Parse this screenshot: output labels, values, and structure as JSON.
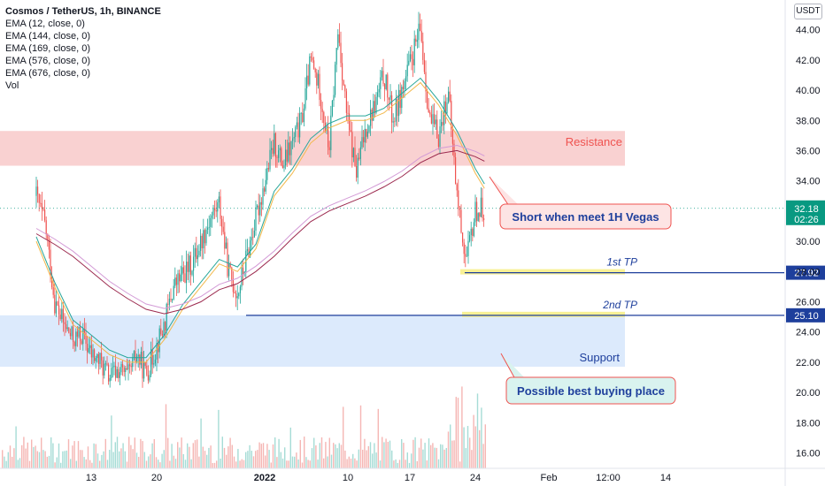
{
  "legend": {
    "title": "Cosmos / TetherUS, 1h, BINANCE",
    "indicators": [
      "EMA (12, close, 0)",
      "EMA (144, close, 0)",
      "EMA (169, close, 0)",
      "EMA (576, close, 0)",
      "EMA (676, close, 0)",
      "Vol"
    ]
  },
  "currency_button": "USDT",
  "chart_data": {
    "type": "candlestick",
    "symbol": "Cosmos / TetherUS",
    "interval": "1h",
    "exchange": "BINANCE",
    "y_axis": {
      "ticks": [
        "16.00",
        "18.00",
        "20.00",
        "22.00",
        "24.00",
        "26.00",
        "28.00",
        "30.00",
        "32.00",
        "34.00",
        "36.00",
        "38.00",
        "40.00",
        "42.00",
        "44.00"
      ],
      "range": [
        15.5,
        45.5
      ],
      "side": "right"
    },
    "x_axis": {
      "ticks": [
        "13",
        "20",
        "2022",
        "10",
        "17",
        "24",
        "Feb",
        "12:00",
        "14"
      ]
    },
    "price_path": [
      {
        "x": "Dec 7",
        "y": 33.0
      },
      {
        "x": "Dec 8",
        "y": 31.0
      },
      {
        "x": "Dec 9",
        "y": 26.0
      },
      {
        "x": "Dec 10",
        "y": 24.5
      },
      {
        "x": "Dec 11",
        "y": 23.5
      },
      {
        "x": "Dec 12",
        "y": 23.8
      },
      {
        "x": "Dec 13",
        "y": 22.5
      },
      {
        "x": "Dec 14",
        "y": 22.0
      },
      {
        "x": "Dec 15",
        "y": 21.0
      },
      {
        "x": "Dec 16",
        "y": 21.5
      },
      {
        "x": "Dec 17",
        "y": 21.0
      },
      {
        "x": "Dec 18",
        "y": 22.5
      },
      {
        "x": "Dec 19",
        "y": 21.2
      },
      {
        "x": "Dec 21",
        "y": 24.5
      },
      {
        "x": "Dec 22",
        "y": 27.0
      },
      {
        "x": "Dec 24",
        "y": 28.5
      },
      {
        "x": "Dec 26",
        "y": 31.5
      },
      {
        "x": "Dec 27",
        "y": 32.5
      },
      {
        "x": "Dec 28",
        "y": 28.0
      },
      {
        "x": "Dec 29",
        "y": 26.5
      },
      {
        "x": "Dec 30",
        "y": 29.0
      },
      {
        "x": "Jan 1",
        "y": 34.0
      },
      {
        "x": "Jan 2",
        "y": 36.5
      },
      {
        "x": "Jan 3",
        "y": 35.0
      },
      {
        "x": "Jan 5",
        "y": 38.0
      },
      {
        "x": "Jan 6",
        "y": 42.0
      },
      {
        "x": "Jan 7",
        "y": 40.0
      },
      {
        "x": "Jan 8",
        "y": 36.0
      },
      {
        "x": "Jan 9",
        "y": 44.0
      },
      {
        "x": "Jan 10",
        "y": 38.0
      },
      {
        "x": "Jan 11",
        "y": 34.5
      },
      {
        "x": "Jan 12",
        "y": 37.5
      },
      {
        "x": "Jan 13",
        "y": 39.0
      },
      {
        "x": "Jan 14",
        "y": 41.0
      },
      {
        "x": "Jan 15",
        "y": 38.0
      },
      {
        "x": "Jan 16",
        "y": 40.0
      },
      {
        "x": "Jan 17",
        "y": 42.0
      },
      {
        "x": "Jan 18",
        "y": 44.0
      },
      {
        "x": "Jan 19",
        "y": 38.0
      },
      {
        "x": "Jan 20",
        "y": 37.0
      },
      {
        "x": "Jan 21",
        "y": 40.0
      },
      {
        "x": "Jan 22",
        "y": 33.0
      },
      {
        "x": "Jan 23",
        "y": 28.5
      },
      {
        "x": "Jan 24",
        "y": 32.0
      },
      {
        "x": "Jan 25",
        "y": 32.2
      }
    ],
    "ema_fast": [
      {
        "x": "Dec 7",
        "y": 30.0
      },
      {
        "x": "Dec 9",
        "y": 27.0
      },
      {
        "x": "Dec 11",
        "y": 24.5
      },
      {
        "x": "Dec 13",
        "y": 23.5
      },
      {
        "x": "Dec 15",
        "y": 22.5
      },
      {
        "x": "Dec 17",
        "y": 22.0
      },
      {
        "x": "Dec 19",
        "y": 22.0
      },
      {
        "x": "Dec 21",
        "y": 23.5
      },
      {
        "x": "Dec 23",
        "y": 25.5
      },
      {
        "x": "Dec 25",
        "y": 27.0
      },
      {
        "x": "Dec 27",
        "y": 28.5
      },
      {
        "x": "Dec 29",
        "y": 28.0
      },
      {
        "x": "Dec 31",
        "y": 29.5
      },
      {
        "x": "Jan 2",
        "y": 33.0
      },
      {
        "x": "Jan 4",
        "y": 34.5
      },
      {
        "x": "Jan 6",
        "y": 36.5
      },
      {
        "x": "Jan 8",
        "y": 37.5
      },
      {
        "x": "Jan 10",
        "y": 38.0
      },
      {
        "x": "Jan 12",
        "y": 38.0
      },
      {
        "x": "Jan 14",
        "y": 38.5
      },
      {
        "x": "Jan 16",
        "y": 39.5
      },
      {
        "x": "Jan 18",
        "y": 40.5
      },
      {
        "x": "Jan 20",
        "y": 39.0
      },
      {
        "x": "Jan 22",
        "y": 37.0
      },
      {
        "x": "Jan 24",
        "y": 34.5
      },
      {
        "x": "Jan 25",
        "y": 33.5
      }
    ],
    "ema_slow": [
      {
        "x": "Dec 7",
        "y": 30.5
      },
      {
        "x": "Dec 9",
        "y": 29.8
      },
      {
        "x": "Dec 11",
        "y": 29.0
      },
      {
        "x": "Dec 13",
        "y": 28.0
      },
      {
        "x": "Dec 15",
        "y": 27.0
      },
      {
        "x": "Dec 17",
        "y": 26.2
      },
      {
        "x": "Dec 19",
        "y": 25.5
      },
      {
        "x": "Dec 21",
        "y": 25.2
      },
      {
        "x": "Dec 23",
        "y": 25.5
      },
      {
        "x": "Dec 25",
        "y": 26.0
      },
      {
        "x": "Dec 27",
        "y": 26.8
      },
      {
        "x": "Dec 29",
        "y": 27.2
      },
      {
        "x": "Dec 31",
        "y": 28.0
      },
      {
        "x": "Jan 2",
        "y": 29.0
      },
      {
        "x": "Jan 4",
        "y": 30.2
      },
      {
        "x": "Jan 6",
        "y": 31.3
      },
      {
        "x": "Jan 8",
        "y": 32.0
      },
      {
        "x": "Jan 10",
        "y": 32.5
      },
      {
        "x": "Jan 12",
        "y": 33.0
      },
      {
        "x": "Jan 14",
        "y": 33.6
      },
      {
        "x": "Jan 16",
        "y": 34.3
      },
      {
        "x": "Jan 18",
        "y": 35.2
      },
      {
        "x": "Jan 20",
        "y": 35.8
      },
      {
        "x": "Jan 22",
        "y": 36.0
      },
      {
        "x": "Jan 24",
        "y": 35.6
      },
      {
        "x": "Jan 25",
        "y": 35.3
      }
    ],
    "zones": [
      {
        "name": "Resistance",
        "from": 35.0,
        "to": 37.3,
        "color": "#f8c9c9",
        "label_color": "#ef5350"
      },
      {
        "name": "Support",
        "from": 21.7,
        "to": 25.1,
        "color": "#d6e6fb",
        "label_color": "#1e3f9c"
      }
    ],
    "horizontal_lines": [
      {
        "label": "1st TP",
        "value": 27.92,
        "axis_label": "27.92",
        "color": "#1e3f9c"
      },
      {
        "label": "2nd TP",
        "value": 25.1,
        "axis_label": "25.10",
        "color": "#1e3f9c"
      }
    ],
    "annotations": [
      {
        "text": "Short when meet 1H Vegas",
        "bg": "#fde4e4",
        "border": "#ef5350",
        "text_color": "#1e3f9c"
      },
      {
        "text": "Possible best buying place",
        "bg": "#d9f3ef",
        "border": "#ef5350",
        "text_color": "#1e3f9c"
      }
    ],
    "current_price": {
      "value": 32.18,
      "label": "32.18",
      "countdown": "02:26",
      "color": "#089981"
    },
    "grid": false,
    "colors": {
      "up": "#26a69a",
      "down": "#ef5350",
      "axis_text": "#131722"
    }
  }
}
